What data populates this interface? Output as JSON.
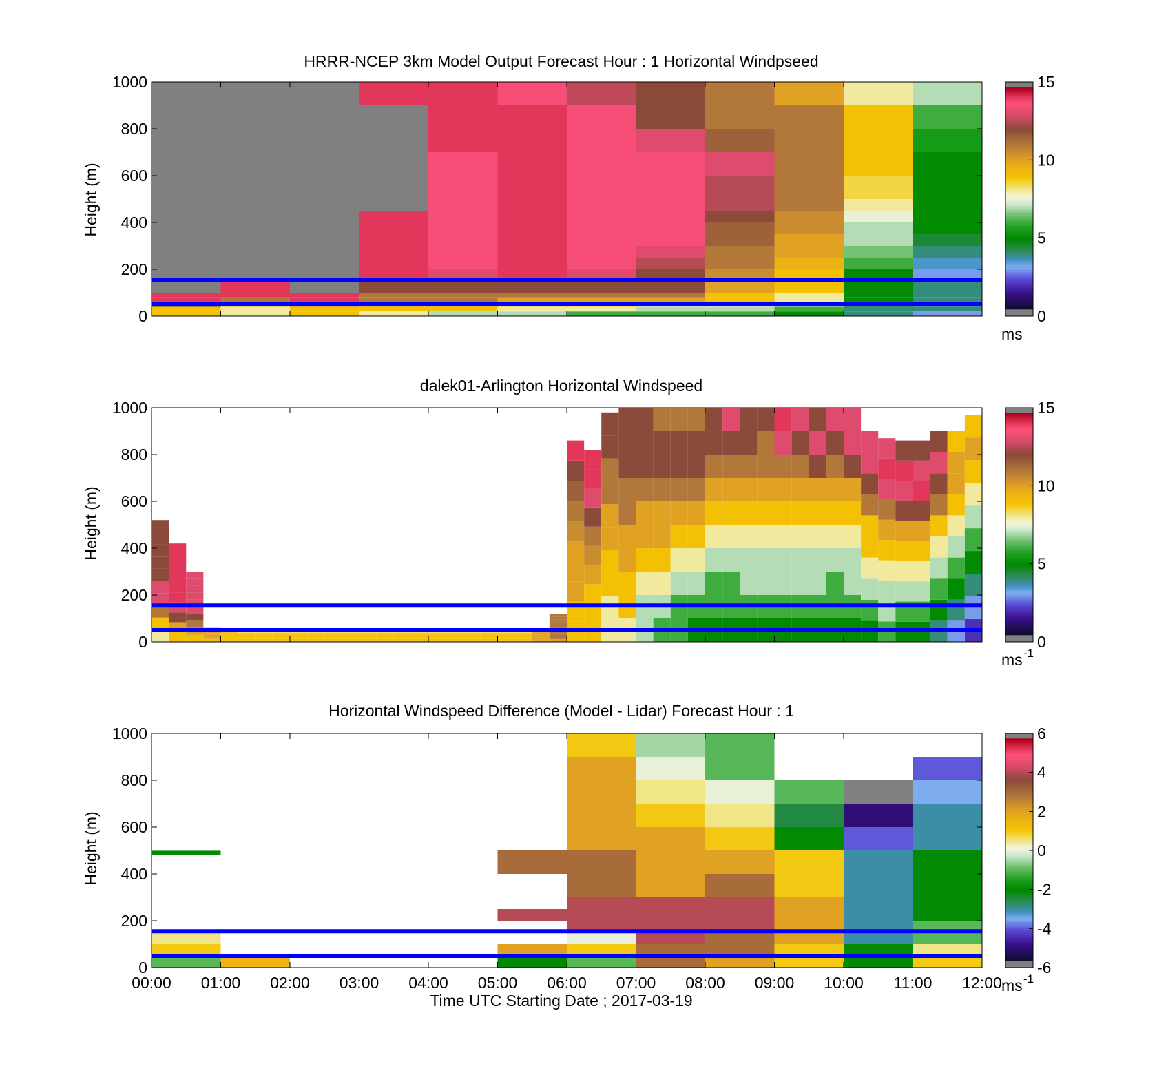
{
  "colors": {
    "overlay_line": "#0000ff",
    "missing": "#808080",
    "axis": "#000000"
  },
  "shared": {
    "xlabel": "Time UTC  Starting Date ; 2017-03-19",
    "x_ticks": [
      "00:00",
      "01:00",
      "02:00",
      "03:00",
      "04:00",
      "05:00",
      "06:00",
      "07:00",
      "08:00",
      "09:00",
      "10:00",
      "11:00",
      "12:00"
    ]
  },
  "chart_data": [
    {
      "type": "heatmap",
      "title": "HRRR-NCEP 3km Model Output   Forecast Hour : 1 Horizontal Windpseed",
      "ylabel": "Height (m)",
      "xlim": [
        0,
        12
      ],
      "ylim": [
        0,
        1000
      ],
      "y_ticks": [
        0,
        200,
        400,
        600,
        800,
        1000
      ],
      "colorbar": {
        "min": 0,
        "max": 15,
        "ticks": [
          0,
          5,
          10,
          15
        ],
        "unit": "ms"
      },
      "overlay_lines_height_m": [
        50,
        155
      ],
      "grid": false,
      "bands_m": [
        0,
        20,
        40,
        60,
        80,
        100,
        150,
        200,
        250,
        300,
        350,
        400,
        450,
        500,
        600,
        700,
        800,
        900,
        1000
      ],
      "hour_profiles_ms": [
        [
          9,
          9,
          1,
          14,
          14,
          0,
          0,
          0,
          0,
          0,
          0,
          0,
          0,
          0,
          0,
          0,
          0,
          0
        ],
        [
          8,
          8,
          10,
          11,
          14,
          14,
          0,
          0,
          0,
          0,
          0,
          0,
          0,
          0,
          0,
          0,
          0,
          0
        ],
        [
          9,
          9,
          11,
          14,
          14,
          0,
          0,
          0,
          0,
          0,
          0,
          0,
          0,
          0,
          0,
          0,
          0,
          0
        ],
        [
          8,
          9,
          10,
          11,
          11,
          12,
          14,
          14,
          14,
          14,
          14,
          14,
          0,
          0,
          0,
          0,
          0,
          14
        ],
        [
          7,
          9,
          10,
          11,
          11,
          12,
          13,
          13.5,
          13.5,
          13.5,
          13.5,
          13.5,
          13.5,
          13.5,
          13.5,
          14,
          14,
          14
        ],
        [
          7,
          8,
          9,
          10,
          11,
          12,
          14,
          14,
          14,
          14,
          14,
          14,
          14,
          14,
          14,
          14,
          14,
          13.5
        ],
        [
          6,
          8,
          9,
          10,
          11,
          12,
          13,
          13.5,
          13.5,
          13.5,
          13.5,
          13.5,
          13.5,
          13.5,
          13.5,
          13.5,
          13.5,
          12.6
        ],
        [
          6,
          7,
          8,
          10,
          11,
          12,
          12,
          12.5,
          13,
          13.5,
          13.5,
          13.5,
          13.5,
          13.5,
          13.5,
          13,
          12,
          12
        ],
        [
          6,
          7,
          8,
          9,
          9,
          10,
          10.5,
          11,
          11,
          11.5,
          11.5,
          12,
          12.5,
          12.5,
          13,
          11.5,
          11,
          11
        ],
        [
          5,
          6,
          7,
          8,
          8,
          9,
          9,
          9.5,
          10,
          10,
          10.5,
          10.5,
          11,
          11,
          11,
          11,
          11,
          10
        ],
        [
          4,
          4,
          5,
          5,
          5,
          5,
          5,
          6,
          6.5,
          7,
          7,
          7.5,
          8,
          8.5,
          9,
          9,
          9,
          8
        ],
        [
          3,
          4,
          4,
          4,
          4,
          4,
          3,
          3.5,
          4,
          4.5,
          5,
          5,
          5,
          5,
          5,
          5.5,
          6,
          7
        ]
      ]
    },
    {
      "type": "heatmap",
      "title": "dalek01-Arlington  Horizontal Windspeed",
      "ylabel": "Height (m)",
      "xlim": [
        0,
        12
      ],
      "ylim": [
        0,
        1000
      ],
      "y_ticks": [
        0,
        200,
        400,
        600,
        800,
        1000
      ],
      "colorbar": {
        "min": 0,
        "max": 15,
        "ticks": [
          0,
          5,
          10,
          15
        ],
        "unit": "ms",
        "unit_exponent": "-1"
      },
      "overlay_lines_height_m": [
        50,
        155
      ],
      "grid": false,
      "columns_per_hour": 4,
      "column_tops_m": [
        520,
        420,
        300,
        60,
        50,
        40,
        40,
        40,
        40,
        40,
        40,
        40,
        40,
        40,
        40,
        40,
        40,
        40,
        40,
        40,
        40,
        40,
        50,
        120,
        860,
        820,
        980,
        1000,
        1000,
        1000,
        1000,
        1000,
        1000,
        1000,
        1000,
        1000,
        1000,
        1000,
        1000,
        1000,
        1000,
        900,
        870,
        860,
        860,
        900,
        900,
        970
      ],
      "column_profiles_ms": [
        [
          8,
          9,
          11,
          13,
          13,
          12,
          12,
          12,
          12,
          12
        ],
        [
          9,
          10,
          12,
          13,
          14,
          14,
          14,
          14,
          14,
          14
        ],
        [
          9,
          10,
          11,
          12,
          13,
          13,
          13,
          13,
          13,
          13
        ],
        [
          9,
          9,
          10,
          10,
          10,
          10,
          10,
          10,
          10,
          10
        ],
        [
          9,
          9,
          9,
          9,
          9,
          9,
          9,
          9,
          9,
          9
        ],
        [
          9,
          9,
          9,
          9,
          9,
          9,
          9,
          9,
          9,
          9
        ],
        [
          9,
          9,
          9,
          9,
          9,
          9,
          9,
          9,
          9,
          9
        ],
        [
          9,
          9,
          9,
          9,
          9,
          9,
          9,
          9,
          9,
          9
        ],
        [
          9,
          9,
          9,
          9,
          9,
          9,
          9,
          9,
          9,
          9
        ],
        [
          9,
          9,
          9,
          9,
          9,
          9,
          9,
          9,
          9,
          9
        ],
        [
          9,
          9,
          9,
          9,
          9,
          9,
          9,
          9,
          9,
          9
        ],
        [
          9,
          9,
          9,
          9,
          9,
          9,
          9,
          9,
          9,
          9
        ],
        [
          9,
          9,
          9,
          9,
          9,
          9,
          9,
          9,
          9,
          9
        ],
        [
          9,
          9,
          9,
          9,
          9,
          9,
          9,
          9,
          9,
          9
        ],
        [
          9,
          9,
          9,
          9,
          9,
          9,
          9,
          9,
          9,
          9
        ],
        [
          9,
          9,
          9,
          9,
          9,
          9,
          9,
          9,
          9,
          9
        ],
        [
          9,
          9,
          9,
          9,
          9,
          9,
          9,
          9,
          9,
          9
        ],
        [
          9,
          9,
          9,
          9,
          9,
          9,
          9,
          9,
          9,
          9
        ],
        [
          9,
          9,
          9,
          9,
          9,
          9,
          9,
          9,
          9,
          9
        ],
        [
          9,
          9,
          9,
          9,
          9,
          9,
          9,
          9,
          9,
          9
        ],
        [
          9,
          9,
          9,
          9,
          9,
          9,
          9,
          9,
          9,
          9
        ],
        [
          9,
          9,
          9,
          9,
          9,
          9,
          9,
          9,
          9,
          9
        ],
        [
          10,
          10,
          10,
          10,
          10,
          10,
          10,
          10,
          10,
          10
        ],
        [
          10,
          11,
          11,
          11,
          11,
          11,
          11,
          11,
          11,
          11
        ],
        [
          9,
          9,
          10,
          10,
          10,
          10.5,
          11,
          11.5,
          12,
          14
        ],
        [
          9,
          9,
          9,
          10,
          10.5,
          11,
          12,
          13,
          14,
          14
        ],
        [
          8,
          8,
          9,
          9,
          10,
          10,
          11,
          11,
          12,
          12
        ],
        [
          8,
          9,
          9,
          10,
          10,
          11,
          11,
          12,
          12,
          12
        ],
        [
          7,
          7,
          8,
          9,
          10,
          10,
          11,
          12,
          12,
          12
        ],
        [
          6,
          7,
          8,
          9,
          10,
          10,
          11,
          12,
          12,
          11
        ],
        [
          6,
          6,
          7,
          8,
          9,
          10,
          11,
          12,
          12,
          11
        ],
        [
          5,
          6,
          7,
          8,
          9,
          10,
          11,
          12,
          12,
          11
        ],
        [
          5,
          6,
          6,
          7,
          8,
          9,
          10,
          11,
          12,
          12
        ],
        [
          5,
          6,
          6,
          7,
          8,
          9,
          10,
          11,
          12,
          13
        ],
        [
          5,
          6,
          7,
          7,
          8,
          9,
          10,
          11,
          12,
          12
        ],
        [
          5,
          6,
          7,
          7,
          8,
          9,
          10,
          11,
          11,
          12
        ],
        [
          5,
          6,
          7,
          7,
          8,
          9,
          10,
          11,
          13,
          14
        ],
        [
          5,
          6,
          7,
          7,
          8,
          9,
          10,
          11,
          12,
          13
        ],
        [
          5,
          6,
          7,
          7,
          8,
          9,
          10,
          12,
          13,
          12
        ],
        [
          5,
          6,
          6,
          7,
          8,
          9,
          10,
          11,
          12,
          13
        ],
        [
          5,
          6,
          7,
          7,
          8,
          9,
          10,
          12,
          13,
          13
        ],
        [
          5,
          6,
          7,
          8,
          9,
          9,
          11,
          12,
          13,
          13
        ],
        [
          6,
          7,
          7,
          8,
          9,
          10,
          11,
          13,
          14,
          13
        ],
        [
          5,
          6,
          7,
          8,
          9,
          10,
          12,
          13,
          14,
          12
        ],
        [
          5,
          6,
          7,
          8,
          9,
          10,
          12,
          14,
          13,
          12
        ],
        [
          4,
          5,
          6,
          7,
          8,
          9,
          11,
          12,
          13,
          12
        ],
        [
          3,
          4,
          5,
          6,
          7,
          8,
          9,
          10,
          10,
          9
        ],
        [
          2,
          3,
          4,
          5,
          6,
          7,
          8,
          9,
          10,
          9
        ]
      ]
    },
    {
      "type": "heatmap",
      "title": "Horizontal Windspeed Difference (Model - Lidar) Forecast Hour : 1",
      "xlabel": "Time UTC  Starting Date ; 2017-03-19",
      "ylabel": "Height (m)",
      "xlim": [
        0,
        12
      ],
      "ylim": [
        0,
        1000
      ],
      "y_ticks": [
        0,
        200,
        400,
        600,
        800,
        1000
      ],
      "colorbar": {
        "min": -6,
        "max": 6,
        "ticks": [
          -6,
          -4,
          -2,
          0,
          2,
          4,
          6
        ],
        "unit": "ms",
        "unit_exponent": "-1"
      },
      "overlay_lines_height_m": [
        50,
        155
      ],
      "grid": false,
      "bands_m": [
        0,
        50,
        100,
        150,
        200,
        250,
        300,
        400,
        500,
        600,
        700,
        800,
        900,
        1000
      ],
      "hour_profiles_ms": [
        [
          -1,
          1,
          0.5,
          null,
          null,
          null,
          null,
          null,
          null,
          null,
          null,
          null,
          null
        ],
        [
          1.5,
          null,
          null,
          null,
          null,
          null,
          null,
          null,
          null,
          null,
          null,
          null,
          null
        ],
        [
          null,
          null,
          null,
          null,
          null,
          null,
          null,
          null,
          null,
          null,
          null,
          null,
          null
        ],
        [
          null,
          null,
          null,
          null,
          null,
          null,
          null,
          null,
          null,
          null,
          null,
          null,
          null
        ],
        [
          null,
          null,
          null,
          null,
          null,
          null,
          null,
          null,
          null,
          null,
          null,
          null,
          null
        ],
        [
          -2,
          2,
          null,
          null,
          4,
          null,
          null,
          3,
          null,
          null,
          null,
          null,
          null
        ],
        [
          -1,
          1,
          0,
          4,
          4,
          4,
          3,
          3,
          2,
          2,
          2,
          2,
          1
        ],
        [
          3,
          3,
          4,
          4,
          4,
          4,
          2,
          2,
          2,
          1,
          0.5,
          0,
          -0.5
        ],
        [
          2,
          3,
          3,
          4,
          4,
          4,
          3,
          2,
          1,
          0.5,
          0,
          -1,
          -1
        ],
        [
          1,
          1,
          2,
          2,
          2,
          2,
          1,
          1,
          -2,
          -2.5,
          -1,
          null,
          null
        ],
        [
          -2,
          -2,
          -3,
          -3,
          -3,
          -3,
          -3,
          -3,
          -4,
          -5,
          -6,
          null,
          null
        ],
        [
          1,
          0.5,
          -1,
          -1,
          -2,
          -2,
          -2,
          -2,
          -3,
          -3,
          -3.5,
          -4,
          null
        ]
      ],
      "annotations": [
        {
          "x_hours": [
            0.0,
            1.0
          ],
          "height_m": 490,
          "value_ms": -2
        }
      ]
    }
  ]
}
